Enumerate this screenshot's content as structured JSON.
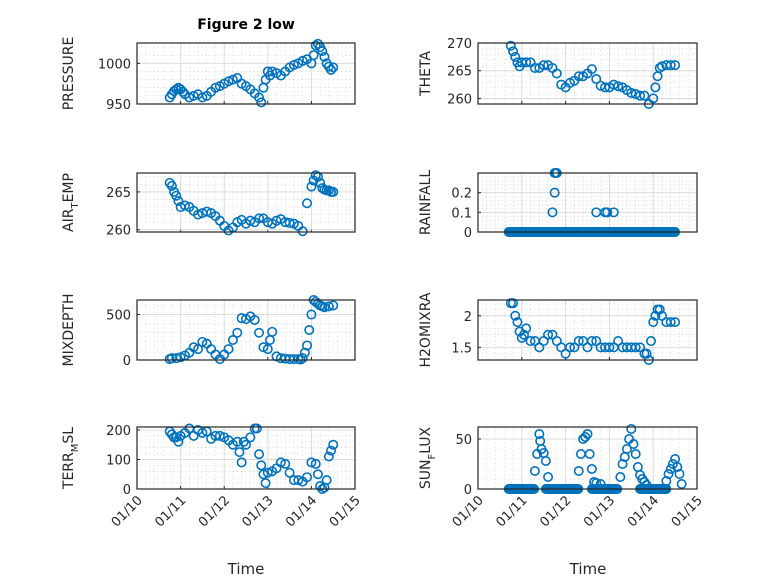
{
  "figure": {
    "title": "Figure 2 low",
    "xlabel": "Time",
    "marker_color": "#0072BD",
    "x_ticks": [
      "01/10",
      "01/11",
      "01/12",
      "01/13",
      "01/14",
      "01/15"
    ]
  },
  "chart_data": [
    {
      "type": "scatter",
      "id": "pressure",
      "title": "Figure 2 low",
      "ylabel_main": "PRESSURE",
      "ylabel_sub": "",
      "ylabel_tail": "",
      "xlim": [
        0,
        5
      ],
      "ylim": [
        950,
        1025
      ],
      "yticks": [
        950,
        1000
      ],
      "ytick_labels": [
        "950",
        "1000"
      ],
      "grid": true,
      "x": [
        0.75,
        0.8,
        0.85,
        0.9,
        0.95,
        1.0,
        1.05,
        1.1,
        1.2,
        1.3,
        1.4,
        1.5,
        1.6,
        1.7,
        1.8,
        1.9,
        2.0,
        2.1,
        2.2,
        2.3,
        2.4,
        2.5,
        2.6,
        2.7,
        2.8,
        2.85,
        2.9,
        2.95,
        3.0,
        3.05,
        3.1,
        3.2,
        3.3,
        3.4,
        3.5,
        3.6,
        3.7,
        3.8,
        3.9,
        4.0,
        4.05,
        4.1,
        4.15,
        4.2,
        4.25,
        4.3,
        4.35,
        4.4,
        4.45,
        4.5
      ],
      "y": [
        958,
        962,
        966,
        968,
        970,
        968,
        965,
        962,
        958,
        960,
        962,
        958,
        960,
        965,
        970,
        972,
        975,
        978,
        980,
        982,
        975,
        972,
        968,
        963,
        958,
        952,
        970,
        980,
        990,
        985,
        990,
        988,
        985,
        990,
        995,
        998,
        1000,
        1003,
        1005,
        1000,
        1010,
        1022,
        1024,
        1020,
        1015,
        1008,
        1000,
        996,
        992,
        995
      ]
    },
    {
      "type": "scatter",
      "id": "theta",
      "ylabel_main": "THETA",
      "ylabel_sub": "",
      "ylabel_tail": "",
      "xlim": [
        0,
        5
      ],
      "ylim": [
        259,
        270
      ],
      "yticks": [
        260,
        265,
        270
      ],
      "ytick_labels": [
        "260",
        "265",
        "270"
      ],
      "grid": true,
      "x": [
        0.75,
        0.8,
        0.85,
        0.9,
        0.95,
        1.0,
        1.1,
        1.2,
        1.3,
        1.4,
        1.5,
        1.6,
        1.7,
        1.8,
        1.9,
        2.0,
        2.1,
        2.2,
        2.3,
        2.4,
        2.5,
        2.6,
        2.7,
        2.8,
        2.9,
        3.0,
        3.1,
        3.2,
        3.3,
        3.4,
        3.5,
        3.6,
        3.7,
        3.8,
        3.9,
        4.0,
        4.05,
        4.1,
        4.15,
        4.2,
        4.3,
        4.4,
        4.5
      ],
      "y": [
        269.5,
        268.5,
        267.5,
        266.5,
        265.8,
        266.5,
        266.5,
        266.5,
        265.5,
        265.5,
        266,
        266,
        265.5,
        264.5,
        262.5,
        262,
        262.8,
        263.2,
        264,
        264,
        264.5,
        265.3,
        263.5,
        262.3,
        262,
        262,
        262.5,
        262.2,
        262,
        261.5,
        261,
        260.8,
        260.5,
        260.5,
        259,
        260,
        262,
        264,
        265.5,
        265.8,
        266,
        266,
        266
      ]
    },
    {
      "type": "scatter",
      "id": "air_temp",
      "ylabel_main": "AIR",
      "ylabel_sub": "T",
      "ylabel_tail": "EMP",
      "xlim": [
        0,
        5
      ],
      "ylim": [
        259.7,
        267.5
      ],
      "yticks": [
        260,
        265
      ],
      "ytick_labels": [
        "260",
        "265"
      ],
      "grid": true,
      "x": [
        0.75,
        0.8,
        0.85,
        0.9,
        0.95,
        1.0,
        1.1,
        1.2,
        1.3,
        1.4,
        1.5,
        1.6,
        1.7,
        1.8,
        1.9,
        2.0,
        2.1,
        2.2,
        2.3,
        2.4,
        2.5,
        2.6,
        2.7,
        2.8,
        2.9,
        3.0,
        3.1,
        3.2,
        3.3,
        3.4,
        3.5,
        3.6,
        3.7,
        3.8,
        3.9,
        4.0,
        4.05,
        4.1,
        4.15,
        4.2,
        4.25,
        4.3,
        4.35,
        4.4,
        4.45,
        4.5
      ],
      "y": [
        266.2,
        265.8,
        265,
        264.5,
        263.8,
        263,
        263.2,
        263,
        262.5,
        262,
        262.2,
        262.4,
        262.2,
        261.8,
        261.2,
        260.5,
        259.9,
        260.3,
        261,
        261.3,
        260.8,
        261.2,
        261,
        261.5,
        261.5,
        261,
        260.8,
        261.2,
        261.4,
        261,
        260.9,
        260.8,
        260.5,
        259.8,
        263.5,
        265.7,
        266.5,
        267.2,
        267,
        266.2,
        265.5,
        265.3,
        265.2,
        265.2,
        265,
        265
      ]
    },
    {
      "type": "scatter",
      "id": "rainfall",
      "ylabel_main": "RAINFALL",
      "ylabel_sub": "",
      "ylabel_tail": "",
      "xlim": [
        0,
        5
      ],
      "ylim": [
        0,
        0.3
      ],
      "yticks": [
        0,
        0.1,
        0.2
      ],
      "ytick_labels": [
        "0",
        "0.1",
        "0.2"
      ],
      "grid": true,
      "x": [
        1.7,
        1.75,
        1.75,
        1.78,
        1.8,
        2.7,
        2.9,
        2.95,
        3.1
      ],
      "y": [
        0.1,
        0.2,
        0.3,
        0.3,
        0.3,
        0.1,
        0.1,
        0.1,
        0.1
      ],
      "zero_range": [
        0.7,
        4.5
      ]
    },
    {
      "type": "scatter",
      "id": "mixdepth",
      "ylabel_main": "MIXDEPTH",
      "ylabel_sub": "",
      "ylabel_tail": "",
      "xlim": [
        0,
        5
      ],
      "ylim": [
        0,
        660
      ],
      "yticks": [
        0,
        500
      ],
      "ytick_labels": [
        "0",
        "500"
      ],
      "grid": true,
      "x": [
        0.75,
        0.8,
        0.9,
        1.0,
        1.1,
        1.2,
        1.3,
        1.4,
        1.5,
        1.6,
        1.7,
        1.8,
        1.9,
        2.0,
        2.1,
        2.2,
        2.3,
        2.4,
        2.5,
        2.6,
        2.7,
        2.8,
        2.9,
        3.0,
        3.05,
        3.1,
        3.2,
        3.3,
        3.4,
        3.5,
        3.6,
        3.7,
        3.75,
        3.8,
        3.85,
        3.9,
        3.95,
        4.0,
        4.05,
        4.1,
        4.15,
        4.2,
        4.25,
        4.3,
        4.4,
        4.5
      ],
      "y": [
        10,
        20,
        20,
        30,
        50,
        80,
        140,
        120,
        200,
        180,
        120,
        60,
        10,
        60,
        120,
        220,
        300,
        460,
        450,
        480,
        440,
        300,
        140,
        120,
        220,
        310,
        40,
        20,
        15,
        10,
        10,
        10,
        5,
        20,
        80,
        160,
        330,
        500,
        660,
        640,
        620,
        600,
        590,
        580,
        590,
        600
      ]
    },
    {
      "type": "scatter",
      "id": "h2omixra",
      "ylabel_main": "H2OMIXRA",
      "ylabel_sub": "",
      "ylabel_tail": "",
      "xlim": [
        0,
        5
      ],
      "ylim": [
        1.3,
        2.25
      ],
      "yticks": [
        1.5,
        2
      ],
      "ytick_labels": [
        "1.5",
        "2"
      ],
      "grid": true,
      "x": [
        0.75,
        0.8,
        0.85,
        0.9,
        0.95,
        1.0,
        1.05,
        1.1,
        1.2,
        1.3,
        1.4,
        1.5,
        1.6,
        1.7,
        1.8,
        1.9,
        2.0,
        2.1,
        2.2,
        2.3,
        2.4,
        2.5,
        2.6,
        2.7,
        2.8,
        2.9,
        3.0,
        3.1,
        3.2,
        3.3,
        3.4,
        3.5,
        3.6,
        3.7,
        3.8,
        3.85,
        3.9,
        3.95,
        4.0,
        4.05,
        4.1,
        4.15,
        4.2,
        4.3,
        4.4,
        4.5
      ],
      "y": [
        2.2,
        2.2,
        2.0,
        1.9,
        1.75,
        1.65,
        1.7,
        1.8,
        1.6,
        1.6,
        1.5,
        1.6,
        1.7,
        1.7,
        1.6,
        1.5,
        1.4,
        1.5,
        1.5,
        1.6,
        1.6,
        1.5,
        1.6,
        1.6,
        1.5,
        1.5,
        1.5,
        1.5,
        1.6,
        1.5,
        1.5,
        1.5,
        1.5,
        1.5,
        1.4,
        1.4,
        1.3,
        1.6,
        1.9,
        2.0,
        2.1,
        2.1,
        2.0,
        1.9,
        1.9,
        1.9
      ]
    },
    {
      "type": "scatter",
      "id": "terr_msl",
      "ylabel_main": "TERR",
      "ylabel_sub": "M",
      "ylabel_tail": "SL",
      "xlim": [
        0,
        5
      ],
      "ylim": [
        0,
        210
      ],
      "yticks": [
        0,
        100,
        200
      ],
      "ytick_labels": [
        "0",
        "100",
        "200"
      ],
      "grid": true,
      "x": [
        0.75,
        0.8,
        0.85,
        0.9,
        0.95,
        1.0,
        1.1,
        1.2,
        1.3,
        1.4,
        1.5,
        1.6,
        1.7,
        1.8,
        1.9,
        2.0,
        2.1,
        2.2,
        2.3,
        2.35,
        2.4,
        2.45,
        2.5,
        2.6,
        2.7,
        2.75,
        2.8,
        2.85,
        2.9,
        2.95,
        3.0,
        3.1,
        3.2,
        3.3,
        3.4,
        3.5,
        3.6,
        3.7,
        3.8,
        3.9,
        4.0,
        4.1,
        4.15,
        4.2,
        4.25,
        4.3,
        4.35,
        4.4,
        4.45,
        4.5
      ],
      "y": [
        195,
        185,
        175,
        175,
        160,
        180,
        190,
        205,
        180,
        200,
        190,
        195,
        170,
        180,
        180,
        175,
        165,
        150,
        160,
        125,
        90,
        160,
        150,
        175,
        205,
        205,
        118,
        80,
        50,
        20,
        55,
        60,
        70,
        90,
        85,
        55,
        30,
        30,
        25,
        40,
        90,
        85,
        50,
        10,
        0,
        5,
        30,
        110,
        130,
        150
      ]
    },
    {
      "type": "scatter",
      "id": "sun_flux",
      "ylabel_main": "SUN",
      "ylabel_sub": "F",
      "ylabel_tail": "LUX",
      "xlim": [
        0,
        5
      ],
      "ylim": [
        0,
        62
      ],
      "yticks": [
        0,
        50
      ],
      "ytick_labels": [
        "0",
        "50"
      ],
      "grid": true,
      "x": [
        1.3,
        1.35,
        1.4,
        1.42,
        1.45,
        1.5,
        1.55,
        1.6,
        2.3,
        2.35,
        2.4,
        2.45,
        2.5,
        2.55,
        2.6,
        2.65,
        2.7,
        2.8,
        3.25,
        3.3,
        3.35,
        3.4,
        3.45,
        3.5,
        3.55,
        3.6,
        3.65,
        3.7,
        3.75,
        3.8,
        3.85,
        4.3,
        4.35,
        4.4,
        4.45,
        4.5,
        4.55,
        4.6,
        4.65
      ],
      "y": [
        18,
        35,
        55,
        48,
        40,
        36,
        28,
        12,
        18,
        35,
        50,
        52,
        55,
        35,
        20,
        7,
        6,
        5,
        12,
        25,
        32,
        40,
        50,
        60,
        45,
        35,
        22,
        14,
        10,
        7,
        4,
        8,
        15,
        20,
        25,
        30,
        22,
        15,
        5
      ],
      "zero_ranges": [
        [
          0.7,
          1.3
        ],
        [
          1.55,
          2.3
        ],
        [
          2.6,
          3.2
        ],
        [
          3.7,
          4.3
        ]
      ]
    }
  ]
}
